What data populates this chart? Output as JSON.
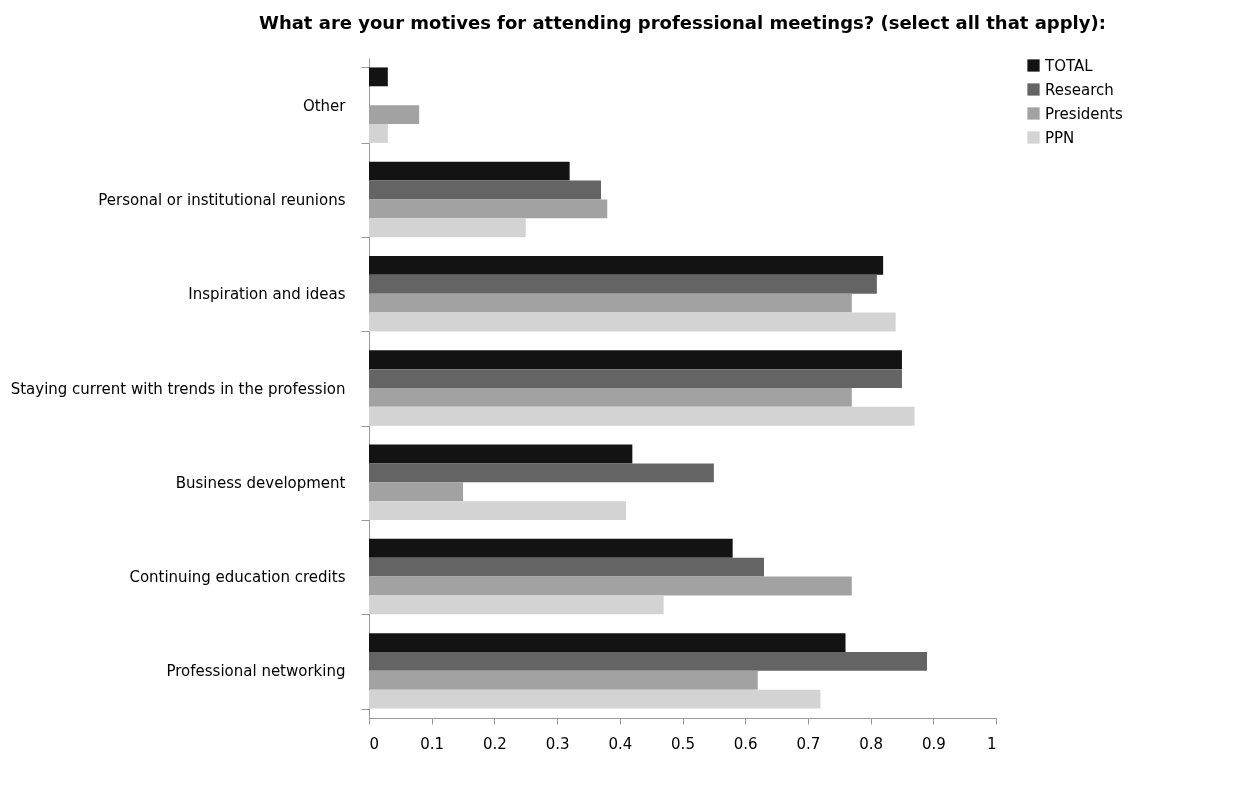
{
  "chart_data": {
    "type": "bar",
    "orientation": "horizontal",
    "title": "What are your motives for attending professional meetings? (select all that apply):",
    "categories": [
      "Other",
      "Personal or institutional reunions",
      "Inspiration and ideas",
      "Staying current with trends in the profession",
      "Business development",
      "Continuing education credits",
      "Professional networking"
    ],
    "series": [
      {
        "name": "TOTAL",
        "color": "#131313",
        "values": [
          0.03,
          0.32,
          0.82,
          0.85,
          0.42,
          0.58,
          0.76
        ]
      },
      {
        "name": "Research",
        "color": "#646464",
        "values": [
          0,
          0.37,
          0.81,
          0.85,
          0.55,
          0.63,
          0.89
        ]
      },
      {
        "name": "Presidents",
        "color": "#a2a2a2",
        "values": [
          0.08,
          0.38,
          0.77,
          0.77,
          0.15,
          0.77,
          0.62
        ]
      },
      {
        "name": "PPN",
        "color": "#d3d3d3",
        "values": [
          0.03,
          0.25,
          0.84,
          0.87,
          0.41,
          0.47,
          0.72
        ]
      }
    ],
    "xlim": [
      0,
      1
    ],
    "xticks": [
      0,
      0.1,
      0.2,
      0.3,
      0.4,
      0.5,
      0.6,
      0.7,
      0.8,
      0.9,
      1
    ],
    "grid": false,
    "legend": "right"
  }
}
